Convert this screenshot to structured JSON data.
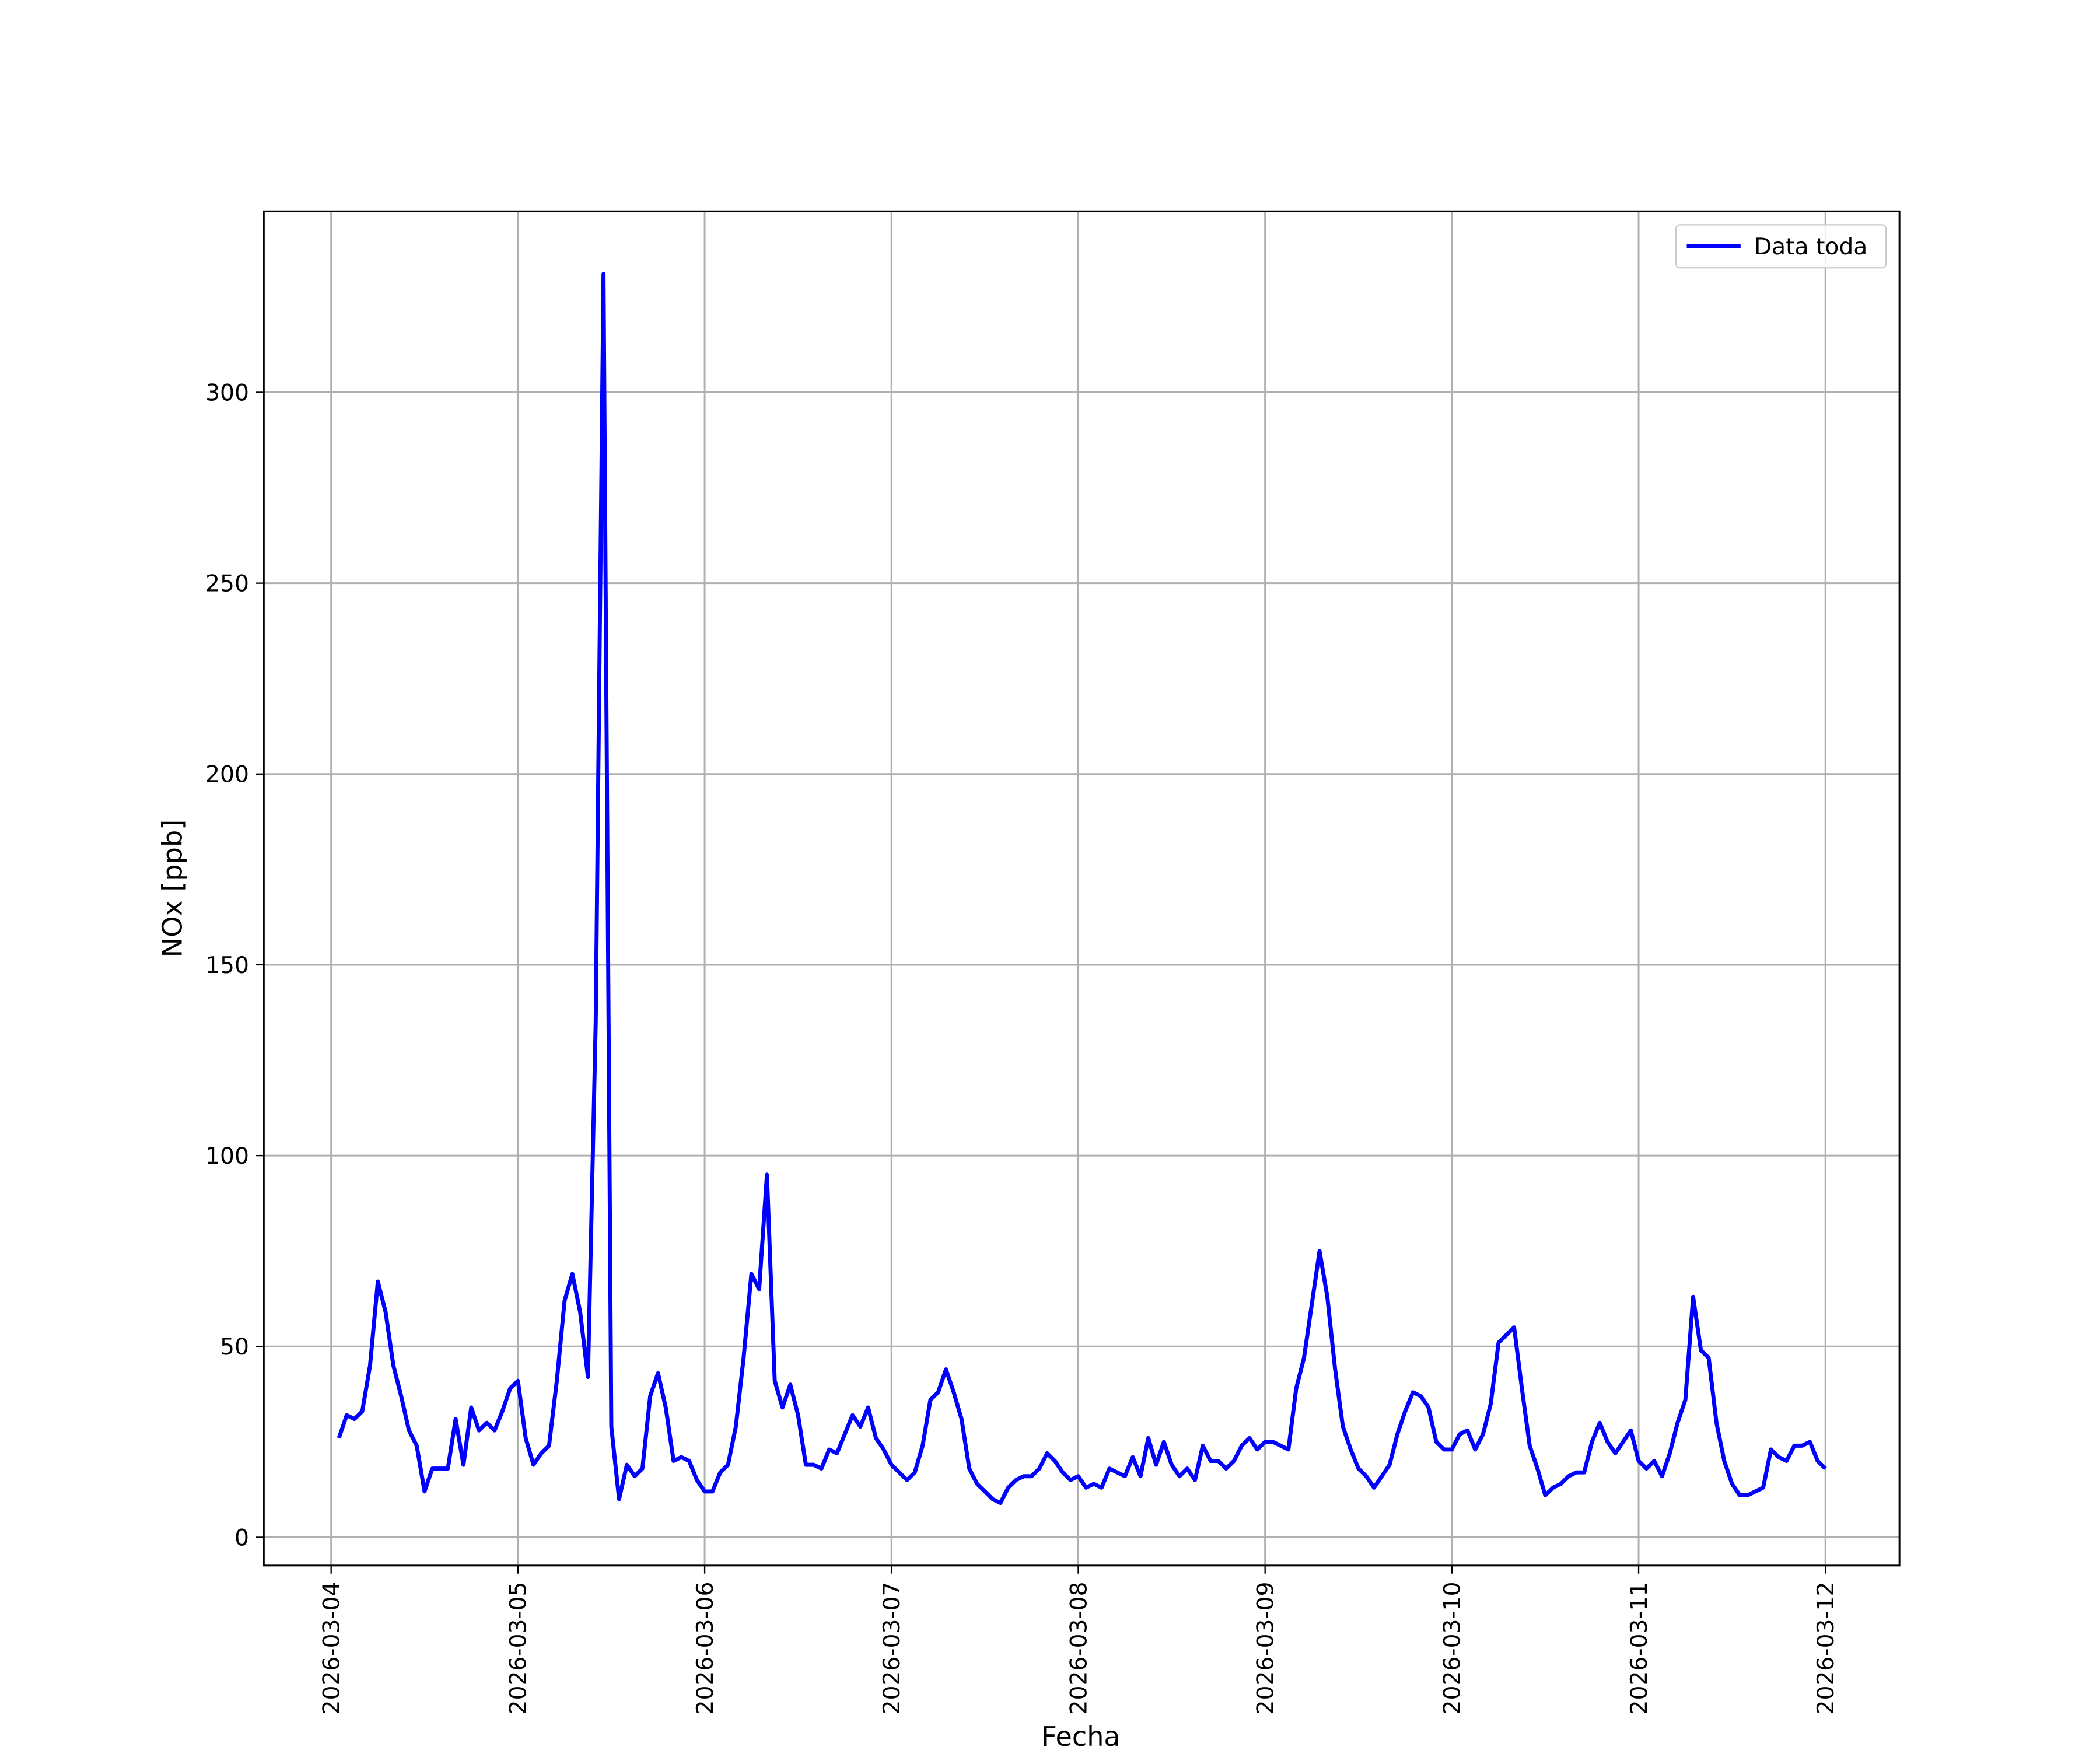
{
  "chart_data": {
    "type": "line",
    "x_label": "Fecha",
    "y_label": "NOx [ppb]",
    "xticks": [
      "2026-03-04",
      "2026-03-05",
      "2026-03-06",
      "2026-03-07",
      "2026-03-08",
      "2026-03-09",
      "2026-03-10",
      "2026-03-11",
      "2026-03-12"
    ],
    "ylim": [
      -7.4,
      347.4
    ],
    "yticks": [
      0,
      50,
      100,
      150,
      200,
      250,
      300
    ],
    "grid": true,
    "legend": "upper right",
    "series": [
      {
        "name": "Data toda",
        "color": "#0000ff",
        "values": [
          26,
          32,
          31,
          33,
          45,
          67,
          59,
          45,
          37,
          28,
          24,
          12,
          18,
          18,
          18,
          31,
          19,
          34,
          28,
          30,
          28,
          33,
          39,
          41,
          26,
          19,
          22,
          24,
          41,
          62,
          69,
          59,
          42,
          135,
          331,
          29,
          10,
          19,
          16,
          18,
          37,
          43,
          34,
          20,
          21,
          20,
          15,
          12,
          12,
          17,
          19,
          29,
          47,
          69,
          65,
          95,
          41,
          34,
          40,
          32,
          19,
          19,
          18,
          23,
          22,
          27,
          32,
          29,
          34,
          26,
          23,
          19,
          17,
          15,
          17,
          24,
          36,
          38,
          44,
          38,
          31,
          18,
          14,
          12,
          10,
          9,
          13,
          15,
          16,
          16,
          18,
          22,
          20,
          17,
          15,
          16,
          13,
          14,
          13,
          18,
          17,
          16,
          21,
          16,
          26,
          19,
          25,
          19,
          16,
          18,
          15,
          24,
          20,
          20,
          18,
          20,
          24,
          26,
          23,
          25,
          25,
          24,
          23,
          39,
          47,
          61,
          75,
          63,
          44,
          29,
          23,
          18,
          16,
          13,
          16,
          19,
          27,
          33,
          38,
          37,
          34,
          25,
          23,
          23,
          27,
          28,
          23,
          27,
          35,
          51,
          53,
          55,
          39,
          24,
          18,
          11,
          13,
          14,
          16,
          17,
          17,
          25,
          30,
          25,
          22,
          25,
          28,
          20,
          18,
          20,
          16,
          22,
          30,
          36,
          63,
          49,
          47,
          30,
          20,
          14,
          11,
          11,
          12,
          13,
          23,
          21,
          20,
          24,
          24,
          25,
          20,
          18
        ]
      }
    ]
  }
}
